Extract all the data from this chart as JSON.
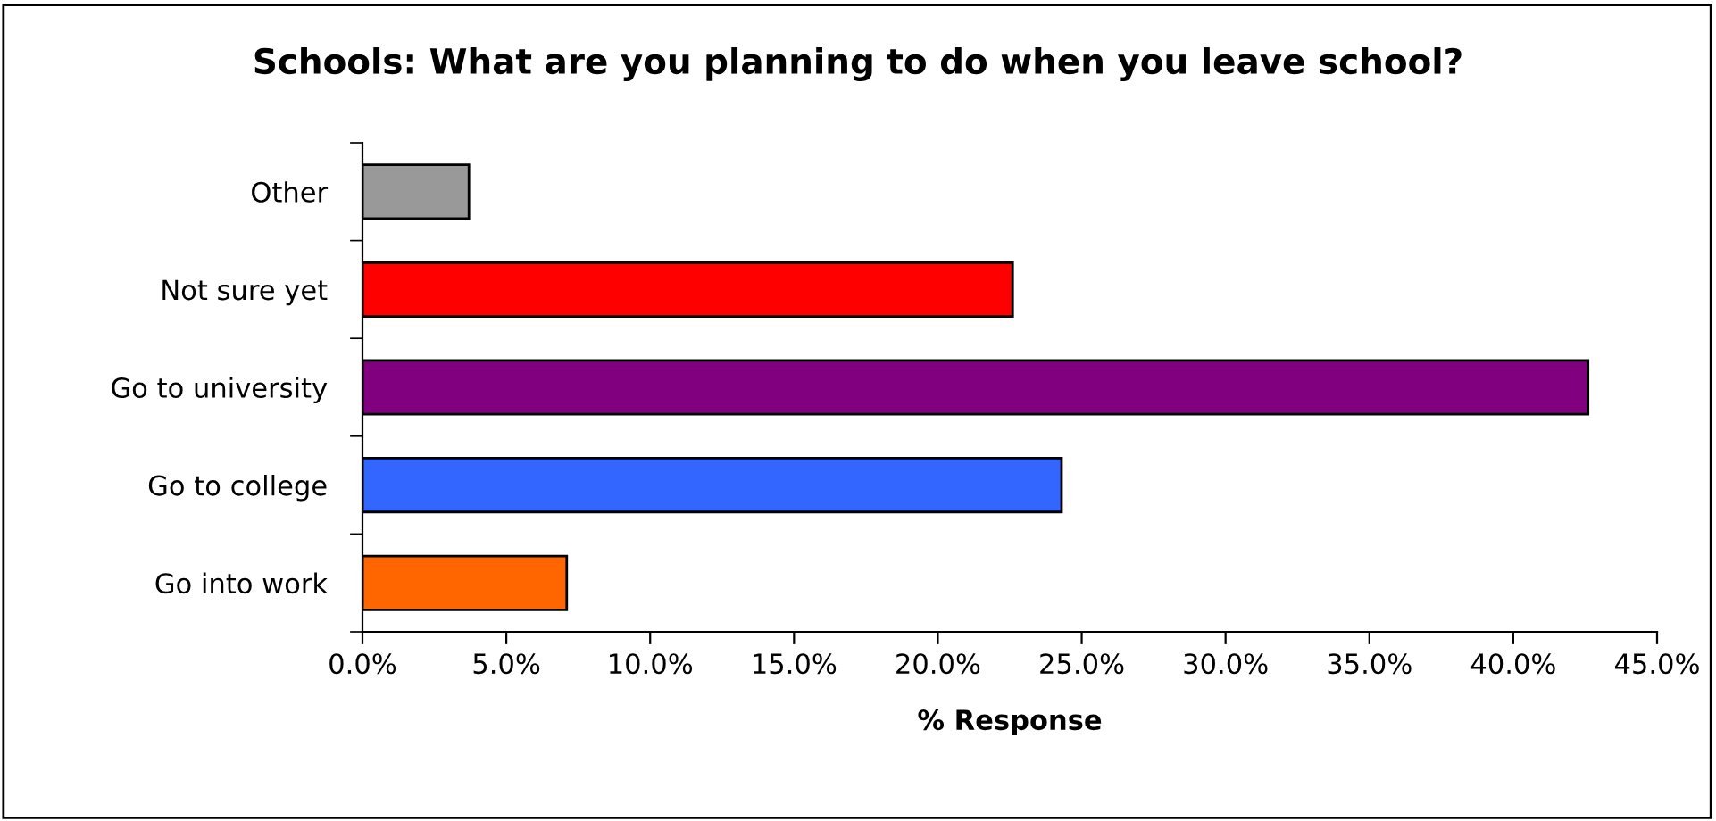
{
  "chart_data": {
    "type": "bar",
    "orientation": "horizontal",
    "title": "Schools: What are you planning to do when you leave school?",
    "xlabel": "% Response",
    "categories": [
      "Other",
      "Not sure yet",
      "Go to university",
      "Go to college",
      "Go into work"
    ],
    "values": [
      3.7,
      22.6,
      42.6,
      24.3,
      7.1
    ],
    "colors": [
      "#999999",
      "#ff0000",
      "#800080",
      "#3366ff",
      "#ff6600"
    ],
    "xlim": [
      0,
      45
    ],
    "xticks": [
      {
        "value": 0,
        "label": "0.0%"
      },
      {
        "value": 5,
        "label": "5.0%"
      },
      {
        "value": 10,
        "label": "10.0%"
      },
      {
        "value": 15,
        "label": "15.0%"
      },
      {
        "value": 20,
        "label": "20.0%"
      },
      {
        "value": 25,
        "label": "25.0%"
      },
      {
        "value": 30,
        "label": "30.0%"
      },
      {
        "value": 35,
        "label": "35.0%"
      },
      {
        "value": 40,
        "label": "40.0%"
      },
      {
        "value": 45,
        "label": "45.0%"
      }
    ],
    "grid": false,
    "legend": false
  }
}
